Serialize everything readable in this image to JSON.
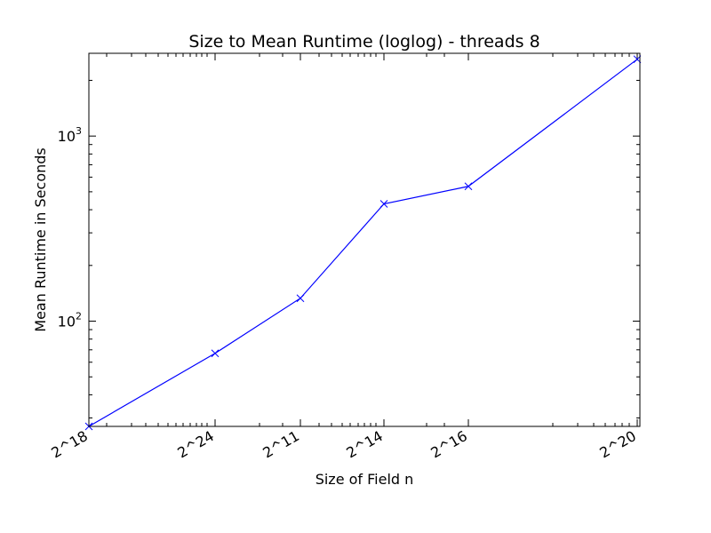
{
  "chart_data": {
    "type": "line",
    "title": "Size to Mean Runtime (loglog) - threads 8",
    "xlabel": "Size of Field n",
    "ylabel": "Mean Runtime in Seconds",
    "x_scale": "log",
    "y_scale": "log",
    "x_tick_labels": [
      "2^18",
      "2^24",
      "2^11",
      "2^14",
      "2^16",
      "2^20"
    ],
    "y_tick_labels": [
      {
        "value": 100,
        "base": "10",
        "exp": "2"
      },
      {
        "value": 1000,
        "base": "10",
        "exp": "3"
      }
    ],
    "ylim": [
      27,
      2800
    ],
    "grid": false,
    "series": [
      {
        "color": "#0000ff",
        "marker": "x",
        "points": [
          {
            "x": "2^18",
            "y": 27
          },
          {
            "x": "2^24",
            "y": 67
          },
          {
            "x": "2^11",
            "y": 133
          },
          {
            "x": "2^14",
            "y": 430
          },
          {
            "x": "2^16",
            "y": 535
          },
          {
            "x": "2^20",
            "y": 2600
          }
        ]
      }
    ]
  }
}
